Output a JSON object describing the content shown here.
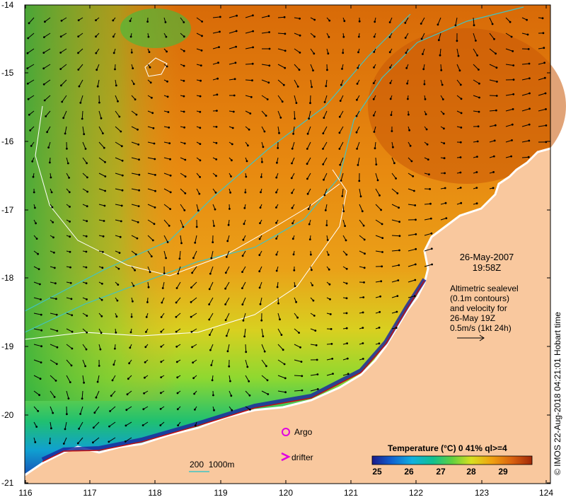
{
  "map": {
    "x_ticks": [
      "116",
      "117",
      "118",
      "119",
      "120",
      "121",
      "122",
      "123",
      "124"
    ],
    "y_ticks": [
      "-14",
      "-15",
      "-16",
      "-17",
      "-18",
      "-19",
      "-20",
      "-21"
    ],
    "date": "26-May-2007",
    "time": "19:58Z",
    "altimetric_lines": [
      "Altimetric sealevel",
      "(0.1m contours)",
      "and velocity for",
      "26-May 19Z",
      "0.5m/s (1kt 24h)"
    ],
    "argo_label": "Argo",
    "drifter_label": "drifter",
    "depth_legend": "200  1000m",
    "colorbar_title": "Temperature (°C) 0 41% ql>=4",
    "colorbar_ticks": [
      "25",
      "26",
      "27",
      "28",
      "29"
    ],
    "credit": "© IMOS 22-Aug-2018 04:21:01 Hobart time",
    "colors": {
      "land": "#f9c89e",
      "contour": "#ffffff",
      "isobath": "#40c4c4",
      "argo": "#e000e0",
      "drifter": "#e000e0"
    }
  }
}
